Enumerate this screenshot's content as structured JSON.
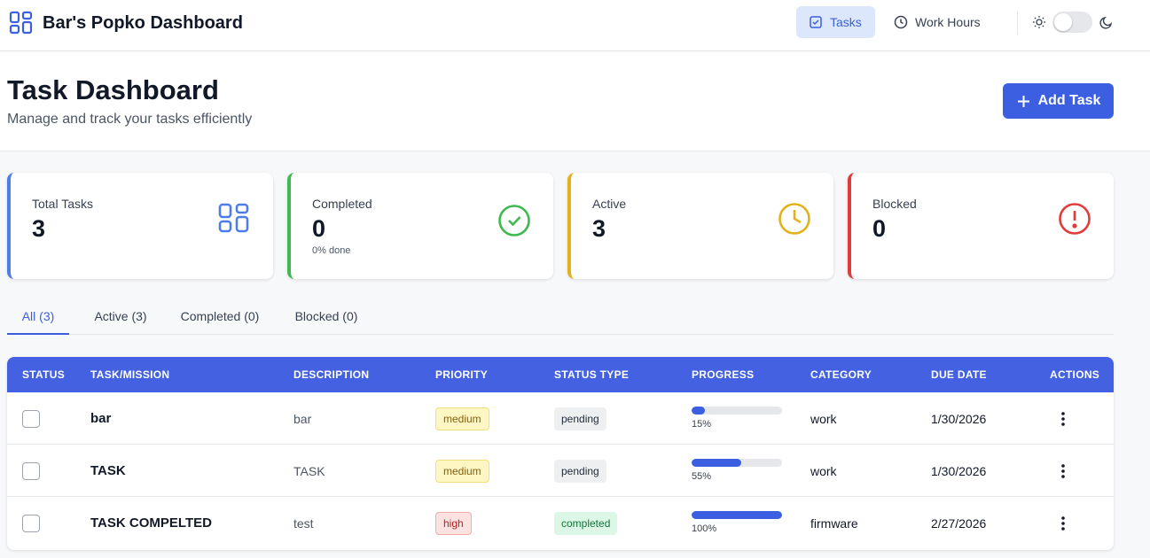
{
  "app": {
    "title": "Bar's Popko Dashboard",
    "accent_color": "#3b5fe0"
  },
  "nav": {
    "tasks_label": "Tasks",
    "hours_label": "Work Hours",
    "tasks_icon": "checkbox-icon",
    "hours_icon": "clock-icon",
    "theme_light_icon": "sun-icon",
    "theme_dark_icon": "moon-icon"
  },
  "header": {
    "title": "Task Dashboard",
    "subtitle": "Manage and track your tasks efficiently",
    "add_label": "Add Task"
  },
  "stats": [
    {
      "label": "Total Tasks",
      "value": "3",
      "sub": "",
      "color": "#4f7de8",
      "icon": "grid-icon"
    },
    {
      "label": "Completed",
      "value": "0",
      "sub": "0% done",
      "color": "#3fb950",
      "icon": "check-circle-icon"
    },
    {
      "label": "Active",
      "value": "3",
      "sub": "",
      "color": "#e2b21c",
      "icon": "clock-icon"
    },
    {
      "label": "Blocked",
      "value": "0",
      "sub": "",
      "color": "#e03c3c",
      "icon": "alert-circle-icon"
    }
  ],
  "tabs": [
    {
      "label": "All (3)",
      "active": true
    },
    {
      "label": "Active (3)",
      "active": false
    },
    {
      "label": "Completed (0)",
      "active": false
    },
    {
      "label": "Blocked (0)",
      "active": false
    }
  ],
  "table": {
    "headers": [
      "STATUS",
      "TASK/MISSION",
      "DESCRIPTION",
      "PRIORITY",
      "STATUS TYPE",
      "PROGRESS",
      "CATEGORY",
      "DUE DATE",
      "ACTIONS"
    ],
    "rows": [
      {
        "task": "bar",
        "description": "bar",
        "priority": "medium",
        "status_type": "pending",
        "progress": 15,
        "progress_label": "15%",
        "category": "work",
        "due_date": "1/30/2026"
      },
      {
        "task": "TASK",
        "description": "TASK",
        "priority": "medium",
        "status_type": "pending",
        "progress": 55,
        "progress_label": "55%",
        "category": "work",
        "due_date": "1/30/2026"
      },
      {
        "task": "TASK COMPELTED",
        "description": "test",
        "priority": "high",
        "status_type": "completed",
        "progress": 100,
        "progress_label": "100%",
        "category": "firmware",
        "due_date": "2/27/2026"
      }
    ]
  }
}
